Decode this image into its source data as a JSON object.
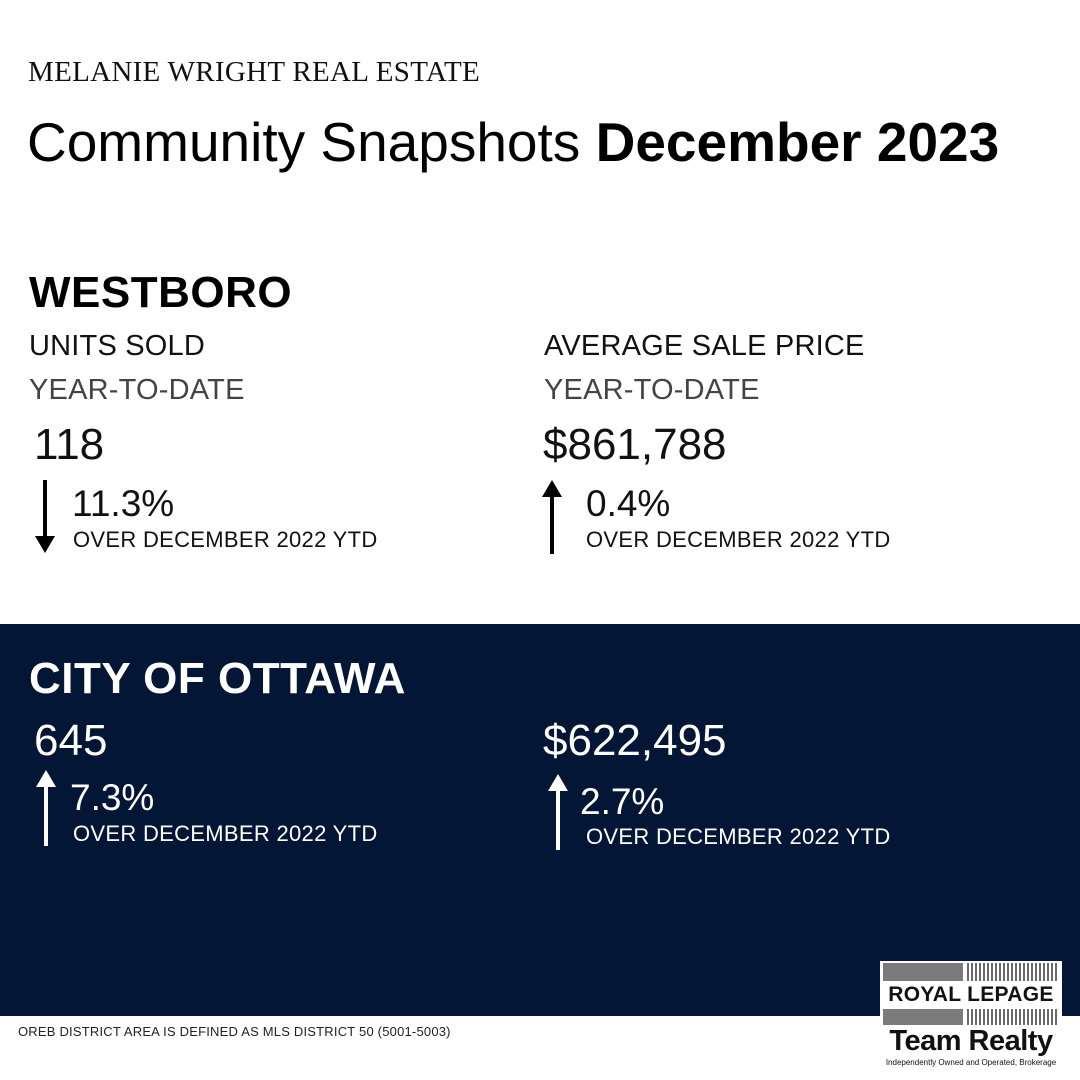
{
  "brand": "MELANIE WRIGHT REAL ESTATE",
  "headline": {
    "regular": "Community Snapshots ",
    "bold": "December 2023"
  },
  "westboro": {
    "title": "WESTBORO",
    "units": {
      "label": "UNITS SOLD",
      "period": "YEAR-TO-DATE",
      "value": "118",
      "change": "11.3%",
      "direction": "down",
      "comparison": "OVER DECEMBER 2022 YTD"
    },
    "price": {
      "label": "AVERAGE SALE PRICE",
      "period": "YEAR-TO-DATE",
      "value": "$861,788",
      "change": "0.4%",
      "direction": "up",
      "comparison": "OVER DECEMBER 2022 YTD"
    }
  },
  "ottawa": {
    "title": "CITY OF OTTAWA",
    "units": {
      "value": "645",
      "change": "7.3%",
      "direction": "up",
      "comparison": "OVER DECEMBER 2022 YTD"
    },
    "price": {
      "value": "$622,495",
      "change": "2.7%",
      "direction": "up",
      "comparison": "OVER DECEMBER 2022 YTD"
    }
  },
  "footnote": "OREB DISTRICT AREA IS DEFINED AS MLS DISTRICT 50 (5001-5003)",
  "logo": {
    "name": "ROYAL LEPAGE",
    "team": "Team Realty",
    "tagline": "Independently Owned and Operated, Brokerage"
  },
  "colors": {
    "navy": "#031635",
    "text": "#000000",
    "white": "#ffffff"
  },
  "icons": {
    "down": "arrow-down-icon",
    "up": "arrow-up-icon"
  }
}
